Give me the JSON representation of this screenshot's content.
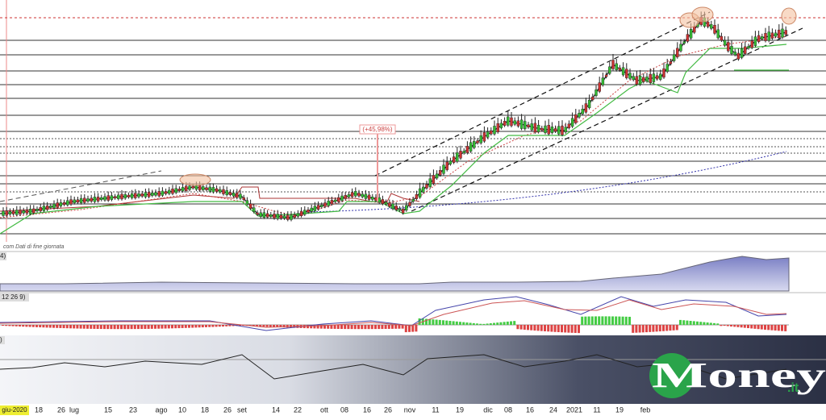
{
  "annotation": "(+45,98%)",
  "panel_labels": [
    "com  Dati di fine giornata",
    "4)",
    "12 26 9)",
    ")"
  ],
  "x_axis": [
    "giu-2020",
    "18",
    "26",
    "lug",
    "15",
    "23",
    "ago",
    "10",
    "18",
    "26",
    "set",
    "14",
    "22",
    "ott",
    "08",
    "16",
    "26",
    "nov",
    "11",
    "19",
    "dic",
    "08",
    "16",
    "24",
    "2021",
    "11",
    "19",
    "feb"
  ],
  "logo": {
    "brand": "Money",
    "suffix": ".it"
  }
}
